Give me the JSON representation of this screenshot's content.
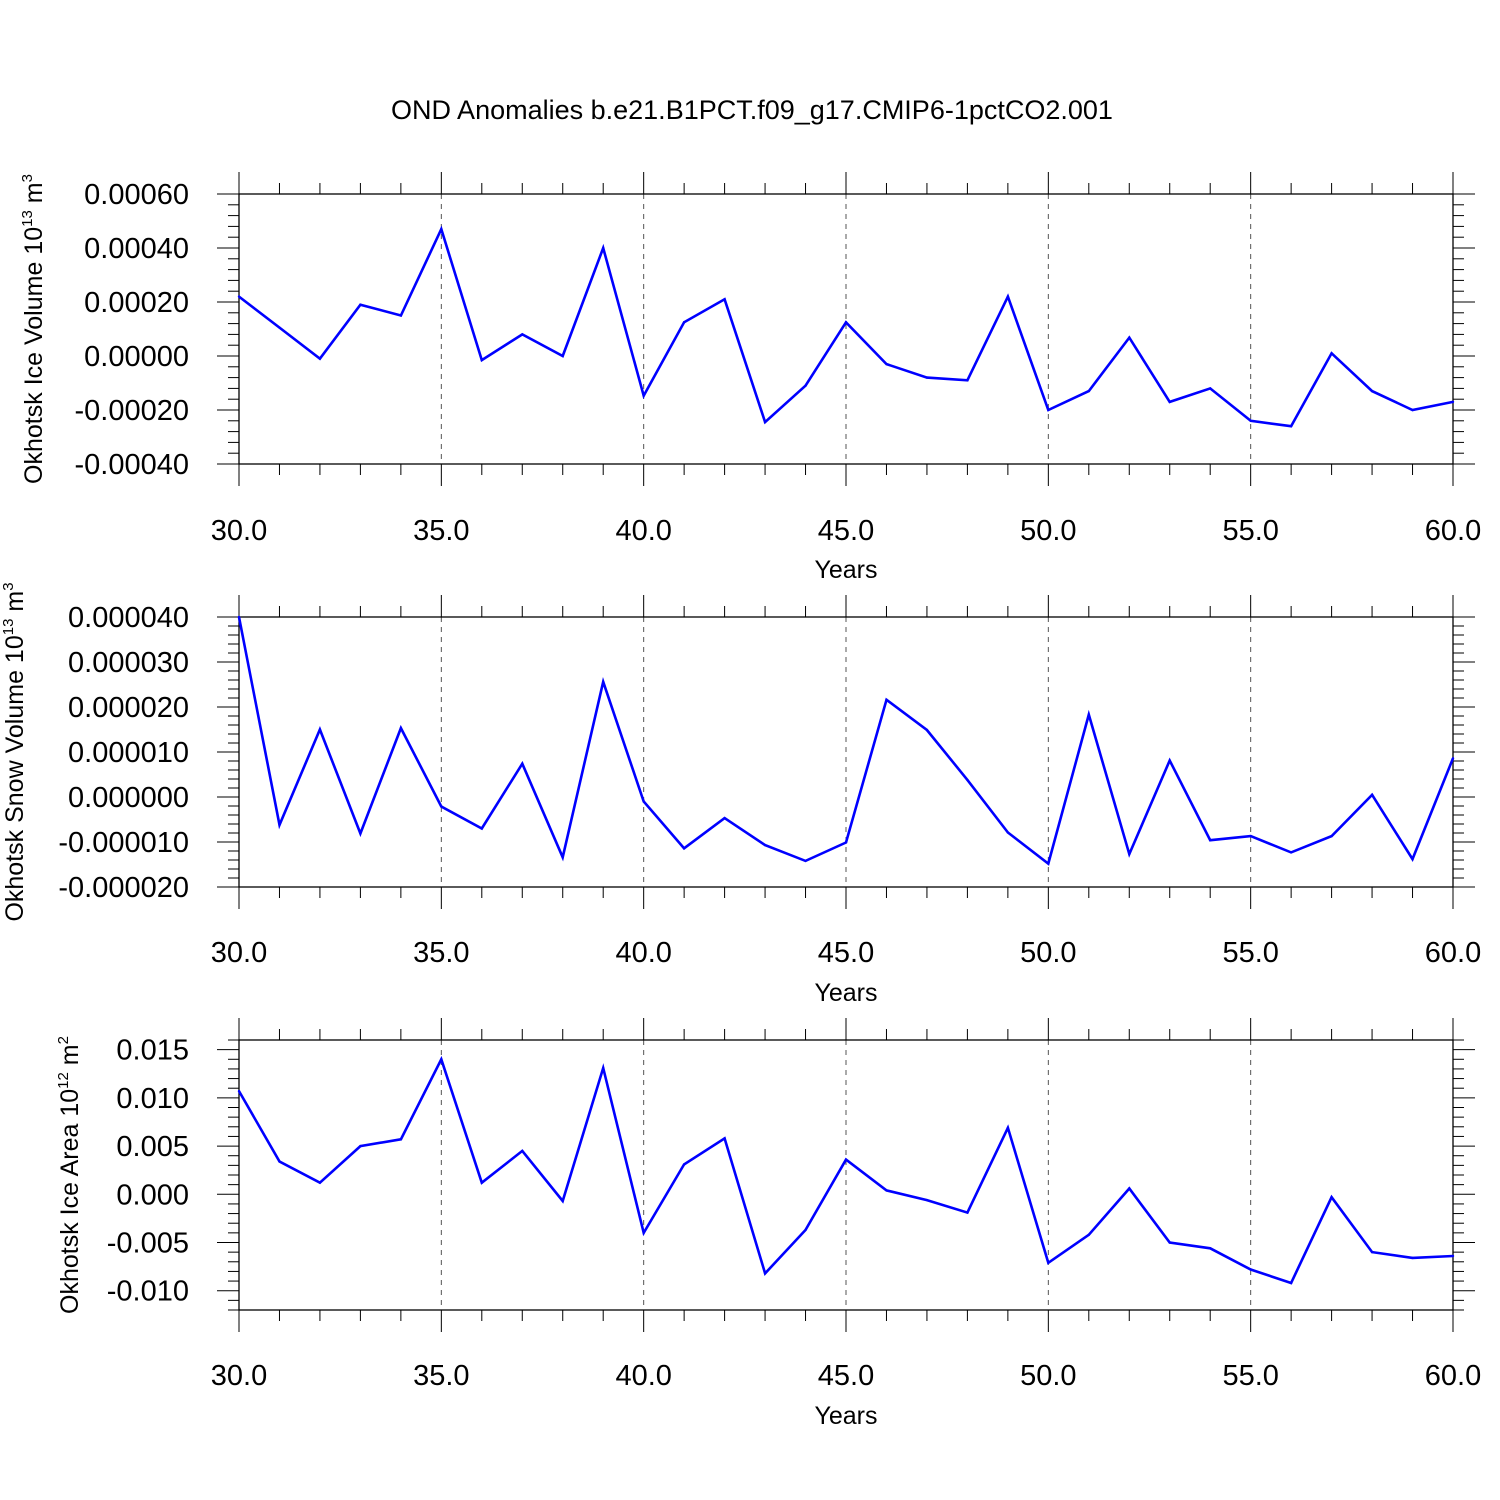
{
  "title": "OND Anomalies b.e21.B1PCT.f09_g17.CMIP6-1pctCO2.001",
  "colors": {
    "line": "#0000ff",
    "axis": "#000000",
    "grid": "#555555"
  },
  "chart_data": [
    {
      "type": "line",
      "xlabel": "Years",
      "ylabel_prefix": "Okhotsk Ice Volume 10",
      "ylabel_exp": "13",
      "ylabel_unit": " m",
      "ylabel_unit_exp": "3",
      "xlim": [
        30,
        60
      ],
      "ylim": [
        -0.0004,
        0.0006
      ],
      "grid": "vertical dashed at major x ticks",
      "x_ticks": [
        30,
        35,
        40,
        45,
        50,
        55,
        60
      ],
      "x_tick_labels": [
        "30.0",
        "35.0",
        "40.0",
        "45.0",
        "50.0",
        "55.0",
        "60.0"
      ],
      "y_ticks": [
        0.0006,
        0.0004,
        0.0002,
        0,
        -0.0002,
        -0.0004
      ],
      "y_tick_labels": [
        "0.00060",
        "0.00040",
        "0.00020",
        "0.00000",
        "-0.00020",
        "-0.00040"
      ],
      "x": [
        30,
        31,
        32,
        33,
        34,
        35,
        36,
        37,
        38,
        39,
        40,
        41,
        42,
        43,
        44,
        45,
        46,
        47,
        48,
        49,
        50,
        51,
        52,
        53,
        54,
        55,
        56,
        57,
        58,
        59,
        60
      ],
      "values": [
        0.00022,
        0.000105,
        -1e-05,
        0.00019,
        0.00015,
        0.00047,
        -1.5e-05,
        8e-05,
        0.0,
        0.0004,
        -0.000147,
        0.000125,
        0.00021,
        -0.000245,
        -0.00011,
        0.000125,
        -3e-05,
        -8e-05,
        -9e-05,
        0.00022,
        -0.0002,
        -0.00013,
        6.8e-05,
        -0.00017,
        -0.00012,
        -0.00024,
        -0.00026,
        1e-05,
        -0.00013,
        -0.0002,
        -0.00017
      ]
    },
    {
      "type": "line",
      "xlabel": "Years",
      "ylabel_prefix": "Okhotsk Snow Volume 10",
      "ylabel_exp": "13",
      "ylabel_unit": " m",
      "ylabel_unit_exp": "3",
      "xlim": [
        30,
        60
      ],
      "ylim": [
        -2e-05,
        4e-05
      ],
      "grid": "vertical dashed at major x ticks",
      "x_ticks": [
        30,
        35,
        40,
        45,
        50,
        55,
        60
      ],
      "x_tick_labels": [
        "30.0",
        "35.0",
        "40.0",
        "45.0",
        "50.0",
        "55.0",
        "60.0"
      ],
      "y_ticks": [
        4e-05,
        3e-05,
        2e-05,
        1e-05,
        0,
        -1e-05,
        -2e-05
      ],
      "y_tick_labels": [
        "0.000040",
        "0.000030",
        "0.000020",
        "0.000010",
        "0.000000",
        "-0.000010",
        "-0.000020"
      ],
      "x": [
        30,
        31,
        32,
        33,
        34,
        35,
        36,
        37,
        38,
        39,
        40,
        41,
        42,
        43,
        44,
        45,
        46,
        47,
        48,
        49,
        50,
        51,
        52,
        53,
        54,
        55,
        56,
        57,
        58,
        59,
        60
      ],
      "values": [
        4e-05,
        -6.2e-06,
        1.5e-05,
        -8.1e-06,
        1.53e-05,
        -2.1e-06,
        -7e-06,
        7.4e-06,
        -1.34e-05,
        2.56e-05,
        -1e-06,
        -1.14e-05,
        -4.7e-06,
        -1.07e-05,
        -1.42e-05,
        -1.01e-05,
        2.16e-05,
        1.49e-05,
        3.8e-06,
        -7.9e-06,
        -1.48e-05,
        1.83e-05,
        -1.27e-05,
        8.1e-06,
        -9.6e-06,
        -8.7e-06,
        -1.23e-05,
        -8.7e-06,
        5e-07,
        -1.38e-05,
        8.6e-06
      ]
    },
    {
      "type": "line",
      "xlabel": "Years",
      "ylabel_prefix": "Okhotsk Ice Area 10",
      "ylabel_exp": "12",
      "ylabel_unit": " m",
      "ylabel_unit_exp": "2",
      "xlim": [
        30,
        60
      ],
      "ylim": [
        -0.012,
        0.016
      ],
      "grid": "vertical dashed at major x ticks",
      "x_ticks": [
        30,
        35,
        40,
        45,
        50,
        55,
        60
      ],
      "x_tick_labels": [
        "30.0",
        "35.0",
        "40.0",
        "45.0",
        "50.0",
        "55.0",
        "60.0"
      ],
      "y_ticks": [
        0.015,
        0.01,
        0.005,
        0,
        -0.005,
        -0.01
      ],
      "y_tick_labels": [
        "0.015",
        "0.010",
        "0.005",
        "0.000",
        "-0.005",
        "-0.010"
      ],
      "x": [
        30,
        31,
        32,
        33,
        34,
        35,
        36,
        37,
        38,
        39,
        40,
        41,
        42,
        43,
        44,
        45,
        46,
        47,
        48,
        49,
        50,
        51,
        52,
        53,
        54,
        55,
        56,
        57,
        58,
        59,
        60
      ],
      "values": [
        0.0107,
        0.0034,
        0.0012,
        0.005,
        0.0057,
        0.014,
        0.0012,
        0.0045,
        -0.0007,
        0.0131,
        -0.004,
        0.0031,
        0.0058,
        -0.0082,
        -0.0037,
        0.0036,
        0.0004,
        -0.0006,
        -0.0019,
        0.0069,
        -0.0071,
        -0.0042,
        0.0006,
        -0.005,
        -0.0056,
        -0.0078,
        -0.0092,
        -0.0003,
        -0.006,
        -0.0066,
        -0.0064
      ]
    }
  ]
}
